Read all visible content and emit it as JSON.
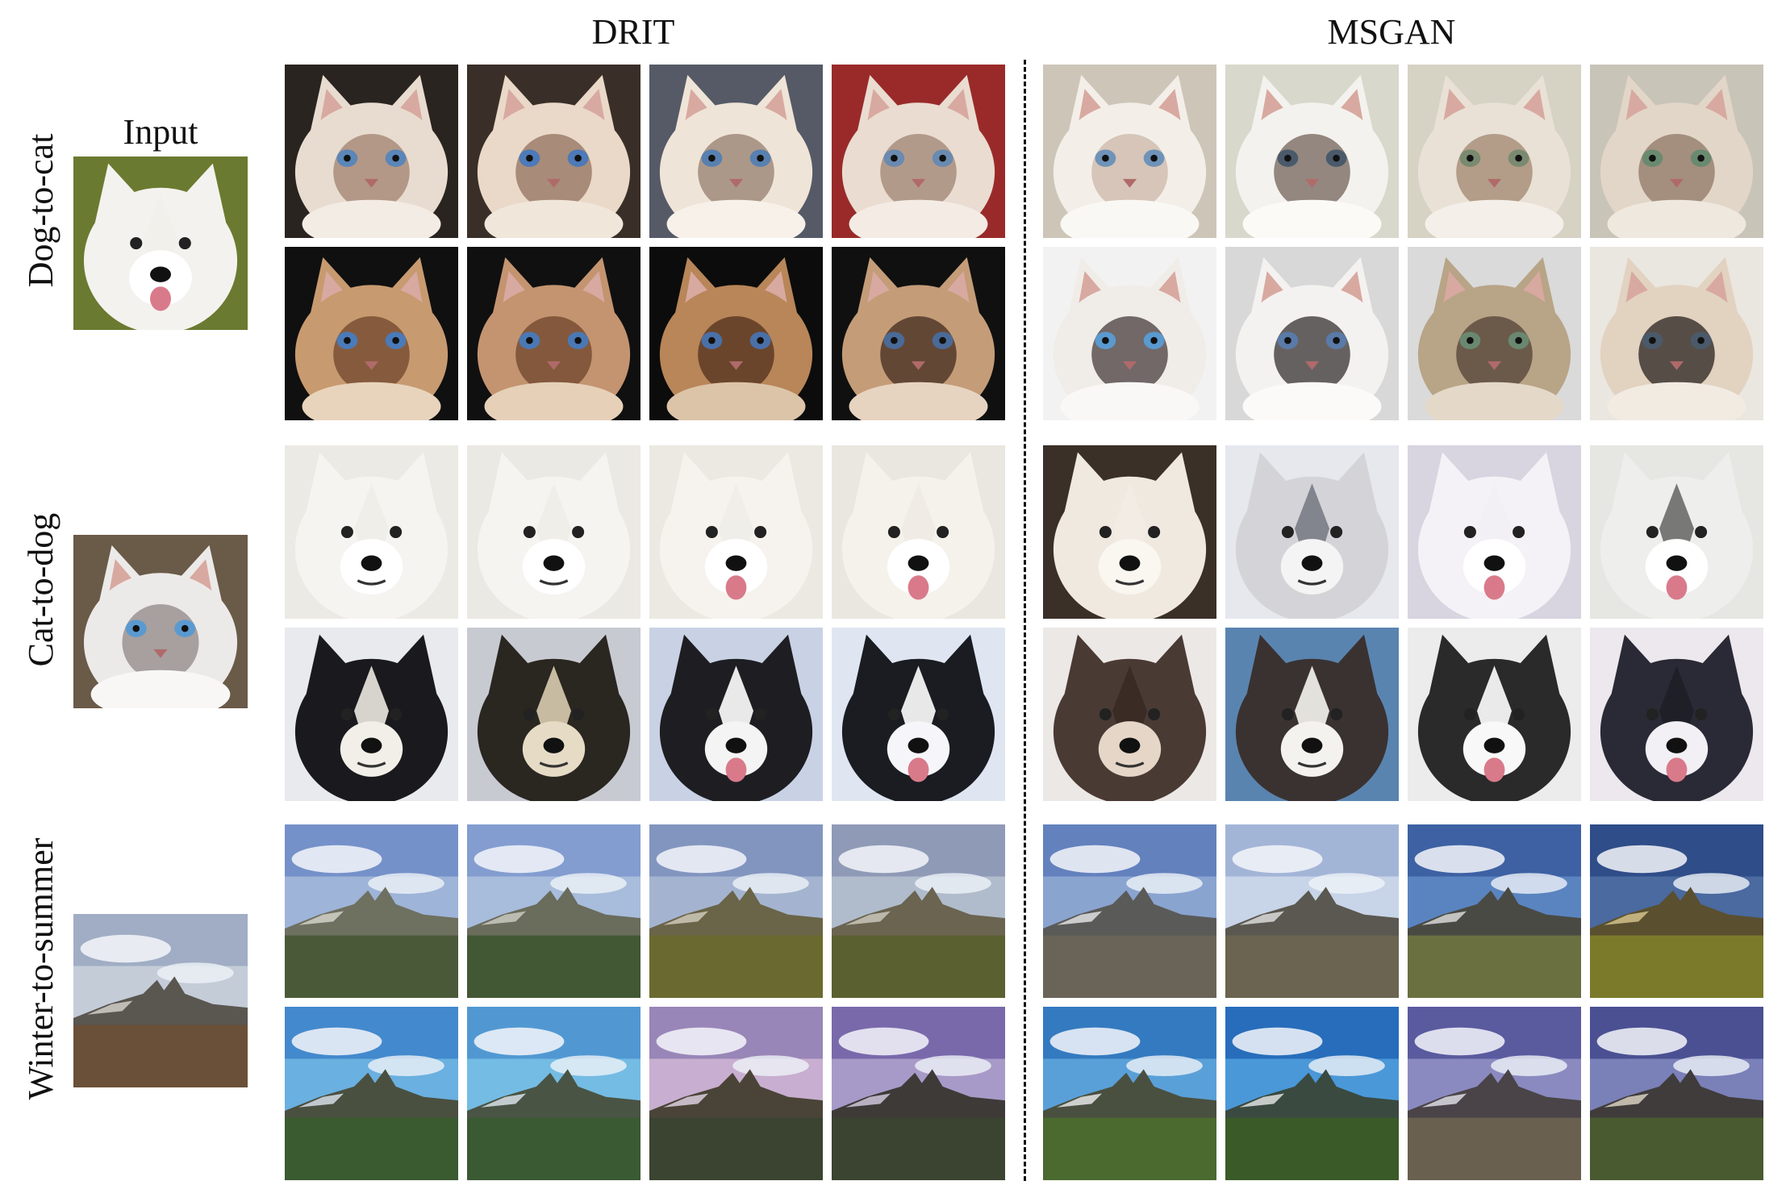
{
  "figure": {
    "methods": [
      "DRIT",
      "MSGAN"
    ],
    "input_label": "Input",
    "rows": [
      {
        "label": "Dog-to-cat",
        "input_subject": "white-samoyed-dog",
        "output_subject": "cat"
      },
      {
        "label": "Cat-to-dog",
        "input_subject": "white-kitten",
        "output_subject": "dog"
      },
      {
        "label": "Winter-to-summer",
        "input_subject": "winter-mountain",
        "output_subject": "summer-mountain"
      }
    ]
  },
  "colors": {
    "divider": "#111111"
  }
}
